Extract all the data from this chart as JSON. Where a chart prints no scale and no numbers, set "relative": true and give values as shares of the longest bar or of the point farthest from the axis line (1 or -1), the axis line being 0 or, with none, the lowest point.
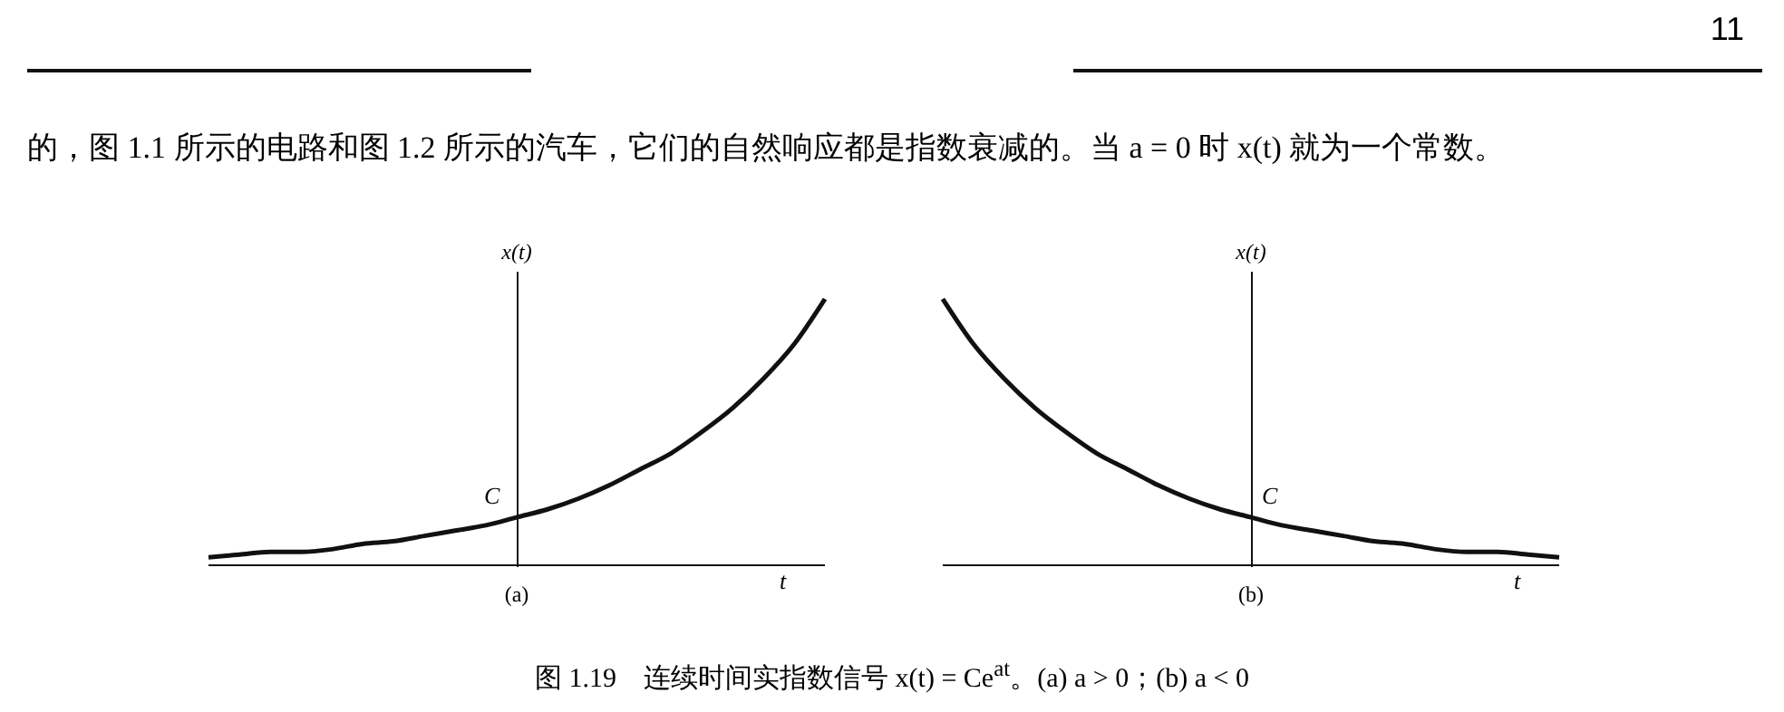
{
  "chart_data": [
    {
      "type": "line",
      "relative": true,
      "xlabel": "t",
      "ylabel": "x(t)",
      "categories": [
        null,
        null,
        null,
        null,
        null,
        null,
        null,
        null,
        null,
        null,
        null,
        null,
        null,
        null,
        null,
        null,
        null,
        null,
        null,
        null,
        null
      ],
      "series": [
        {
          "color": "#111111",
          "values": [
            0.03,
            0.04,
            0.05,
            0.05,
            0.06,
            0.08,
            0.09,
            0.11,
            0.13,
            0.15,
            0.18,
            0.21,
            0.25,
            0.3,
            0.36,
            0.42,
            0.5,
            0.59,
            0.7,
            0.83,
            1.0
          ]
        }
      ],
      "annotations": [
        {
          "text": "C",
          "y": 0.18
        },
        "(a)",
        "11",
        "的，图 1.1 所示的电路和图 1.2 所示的汽车，它们的自然响应都是指数衰减的。当 a = 0 时 x(t) 就为一个常数。",
        "图 1.19　连续时间实指数信号 x(t) = Ce$^{at}$。(a) a > 0；(b) a < 0"
      ]
    },
    {
      "type": "line",
      "relative": true,
      "xlabel": "t",
      "ylabel": "x(t)",
      "categories": [
        null,
        null,
        null,
        null,
        null,
        null,
        null,
        null,
        null,
        null,
        null,
        null,
        null,
        null,
        null,
        null,
        null,
        null,
        null,
        null,
        null
      ],
      "series": [
        {
          "color": "#111111",
          "values": [
            1.0,
            0.83,
            0.7,
            0.59,
            0.5,
            0.42,
            0.36,
            0.3,
            0.25,
            0.21,
            0.18,
            0.15,
            0.13,
            0.11,
            0.09,
            0.08,
            0.06,
            0.05,
            0.05,
            0.04,
            0.03
          ]
        }
      ],
      "annotations": [
        {
          "text": "C",
          "y": 0.18
        },
        "(b)"
      ]
    }
  ]
}
